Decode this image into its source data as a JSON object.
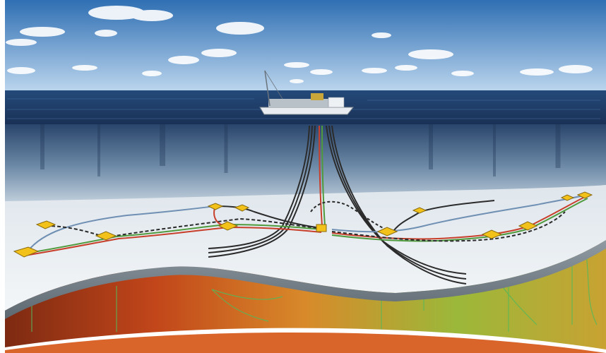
{
  "scene": {
    "colors": {
      "sky_top": "#2f6fb3",
      "sky_bottom": "#bcd6ee",
      "sea_surface": "#1e3d6b",
      "water_column": "#2a4a74",
      "seabed": "#e9eef1",
      "subsurface_warm": "#e05a1a",
      "subsurface_green": "#6aa83a",
      "banner_orange": "#d9652a",
      "manifold_yellow": "#f2c21b",
      "line_black": "#2b2b2b",
      "line_red": "#c8402b",
      "line_green": "#4f9a3d",
      "line_blue": "#6f8fb3"
    },
    "vessel": {
      "name": "fpso-vessel"
    },
    "icons": [
      "subsea-manifold-icon",
      "riser-bundle-icon",
      "flowline-icon"
    ]
  }
}
